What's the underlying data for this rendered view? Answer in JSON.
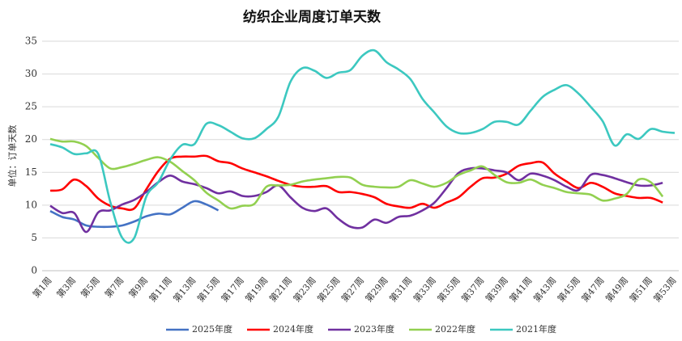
{
  "chart_data": {
    "type": "line",
    "title": "纺织企业周度订单天数",
    "y_label": "单位：订单天数",
    "categories": [
      "第1周",
      null,
      "第3周",
      null,
      "第5周",
      null,
      "第7周",
      null,
      "第9周",
      null,
      "第11周",
      null,
      "第13周",
      null,
      "第15周",
      null,
      "第17周",
      null,
      "第19周",
      null,
      "第21周",
      null,
      "第23周",
      null,
      "第25周",
      null,
      "第27周",
      null,
      "第29周",
      null,
      "第31周",
      null,
      "第33周",
      null,
      "第35周",
      null,
      "第37周",
      null,
      "第39周",
      null,
      "第41周",
      null,
      "第43周",
      null,
      "第45周",
      null,
      "第47周",
      null,
      "第49周",
      null,
      "第51周",
      null,
      "第53周"
    ],
    "ylim": [
      0,
      35
    ],
    "yticks": [
      0,
      5,
      10,
      15,
      20,
      25,
      30,
      35
    ],
    "grid": true,
    "legend": "bottom",
    "series": [
      {
        "name": "2025年度",
        "color": "#4472c4",
        "values": [
          9.1,
          8.2,
          7.8,
          6.9,
          6.7,
          6.7,
          6.9,
          7.5,
          8.3,
          8.7,
          8.6,
          9.6,
          10.6,
          10.1,
          9.2,
          null,
          null,
          null,
          null,
          null,
          null,
          null,
          null,
          null,
          null,
          null,
          null,
          null,
          null,
          null,
          null,
          null,
          null,
          null,
          null,
          null,
          null,
          null,
          null,
          null,
          null,
          null,
          null,
          null,
          null,
          null,
          null,
          null,
          null,
          null,
          null,
          null,
          null
        ]
      },
      {
        "name": "2024年度",
        "color": "#ff0000",
        "values": [
          12.2,
          12.4,
          13.9,
          12.9,
          11.0,
          9.9,
          9.5,
          9.5,
          12.4,
          15.2,
          17.1,
          17.4,
          17.4,
          17.5,
          16.7,
          16.4,
          15.6,
          15.0,
          14.4,
          13.7,
          13.1,
          12.8,
          12.8,
          12.9,
          12.0,
          12.0,
          11.7,
          11.2,
          10.2,
          9.8,
          9.6,
          10.2,
          9.6,
          10.4,
          11.2,
          12.8,
          14.1,
          14.2,
          14.8,
          16.0,
          16.4,
          16.5,
          14.8,
          13.6,
          12.6,
          13.4,
          12.8,
          11.8,
          11.4,
          11.1,
          11.1,
          10.4,
          null
        ]
      },
      {
        "name": "2023年度",
        "color": "#7030a0",
        "values": [
          9.9,
          8.8,
          8.8,
          5.9,
          8.9,
          9.2,
          10.1,
          10.8,
          12.0,
          13.5,
          14.5,
          13.6,
          13.2,
          12.6,
          11.8,
          12.1,
          11.4,
          11.4,
          12.0,
          13.0,
          11.2,
          9.6,
          9.1,
          9.5,
          7.9,
          6.7,
          6.6,
          7.8,
          7.3,
          8.2,
          8.4,
          9.2,
          10.4,
          12.6,
          14.9,
          15.6,
          15.6,
          15.3,
          15.0,
          13.8,
          14.8,
          14.5,
          13.8,
          12.8,
          12.3,
          14.6,
          14.6,
          14.1,
          13.5,
          13.0,
          13.0,
          13.4,
          null
        ]
      },
      {
        "name": "2022年度",
        "color": "#92d050",
        "values": [
          20.1,
          19.7,
          19.7,
          19.0,
          17.2,
          15.6,
          15.8,
          16.3,
          16.9,
          17.3,
          16.6,
          15.2,
          13.8,
          11.9,
          10.7,
          9.5,
          9.9,
          10.2,
          12.8,
          13.0,
          13.1,
          13.6,
          13.9,
          14.1,
          14.3,
          14.2,
          13.1,
          12.8,
          12.7,
          12.8,
          13.8,
          13.3,
          12.8,
          13.4,
          14.6,
          15.3,
          15.9,
          14.6,
          13.5,
          13.4,
          13.9,
          13.1,
          12.6,
          12.0,
          11.8,
          11.6,
          10.7,
          11.0,
          11.7,
          13.9,
          13.5,
          11.3,
          null
        ]
      },
      {
        "name": "2021年度",
        "color": "#3cc8c0",
        "values": [
          19.3,
          18.8,
          17.8,
          17.9,
          17.8,
          10.5,
          5.0,
          5.0,
          11.3,
          13.5,
          17.0,
          19.2,
          19.3,
          22.4,
          22.2,
          21.2,
          20.2,
          20.2,
          21.6,
          23.5,
          28.8,
          30.9,
          30.5,
          29.4,
          30.2,
          30.6,
          32.8,
          33.6,
          31.8,
          30.7,
          29.2,
          26.2,
          24.1,
          22.0,
          21.0,
          21.0,
          21.6,
          22.7,
          22.7,
          22.3,
          24.4,
          26.5,
          27.6,
          28.3,
          27.0,
          25.0,
          22.8,
          19.1,
          20.8,
          20.1,
          21.6,
          21.2,
          21.0
        ]
      }
    ]
  }
}
